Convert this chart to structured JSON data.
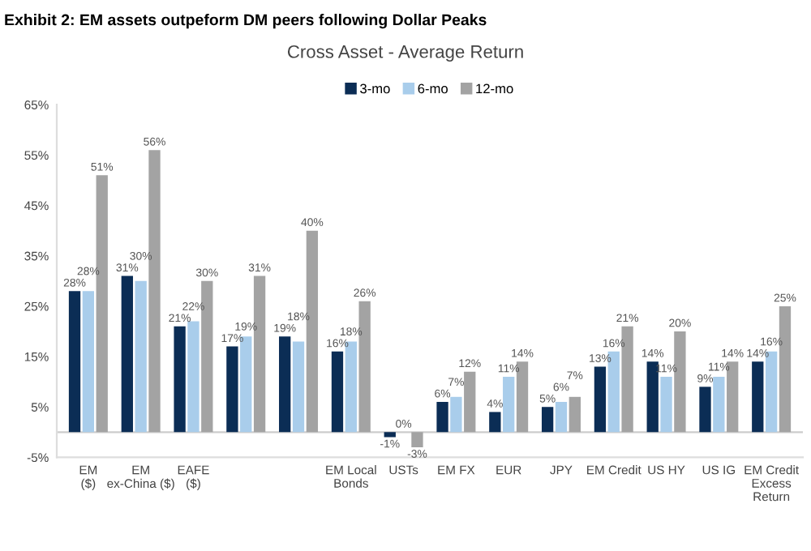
{
  "chart_data": {
    "type": "bar",
    "title": "Exhibit 2: EM assets outpeform DM peers following Dollar Peaks",
    "subtitle": "Cross Asset - Average Return",
    "categories": [
      "EM\n($)",
      "EM\nex-China ($)",
      "EAFE\n($)",
      null,
      null,
      "EM Local\nBonds",
      "USTs",
      "EM FX",
      "EUR",
      "JPY",
      "EM Credit",
      "US HY",
      "US IG",
      "EM Credit\nExcess\nReturn"
    ],
    "series": [
      {
        "name": "3-mo",
        "color": "#0b2d55",
        "values": [
          28,
          31,
          21,
          17,
          19,
          16,
          -1,
          6,
          4,
          5,
          13,
          14,
          9,
          14
        ],
        "value_labels": [
          "28%",
          "31%",
          "21%",
          "17%",
          "19%",
          "16%",
          "-1%",
          "6%",
          "4%",
          "5%",
          "13%",
          "14%",
          "9%",
          "14%"
        ]
      },
      {
        "name": "6-mo",
        "color": "#a9cdeb",
        "values": [
          28,
          30,
          22,
          19,
          18,
          18,
          0,
          7,
          11,
          6,
          16,
          11,
          11,
          16
        ],
        "value_labels": [
          "28%",
          "30%",
          "22%",
          "19%",
          "18%",
          "18%",
          "0%",
          "7%",
          "11%",
          "6%",
          "16%",
          "11%",
          "11%",
          "16%"
        ]
      },
      {
        "name": "12-mo",
        "color": "#a3a3a3",
        "values": [
          51,
          56,
          30,
          31,
          40,
          26,
          -3,
          12,
          14,
          7,
          21,
          20,
          14,
          25
        ],
        "value_labels": [
          "51%",
          "56%",
          "30%",
          "31%",
          "40%",
          "26%",
          "-3%",
          "12%",
          "14%",
          "7%",
          "21%",
          "20%",
          "14%",
          "25%"
        ]
      }
    ],
    "ylim": [
      -5,
      65
    ],
    "yticks": [
      {
        "value": -5,
        "label": "-5%"
      },
      {
        "value": 5,
        "label": "5%"
      },
      {
        "value": 15,
        "label": "15%"
      },
      {
        "value": 25,
        "label": "25%"
      },
      {
        "value": 35,
        "label": "35%"
      },
      {
        "value": 45,
        "label": "45%"
      },
      {
        "value": 55,
        "label": "55%"
      },
      {
        "value": 65,
        "label": "65%"
      }
    ],
    "grid": false,
    "legend": "top"
  }
}
